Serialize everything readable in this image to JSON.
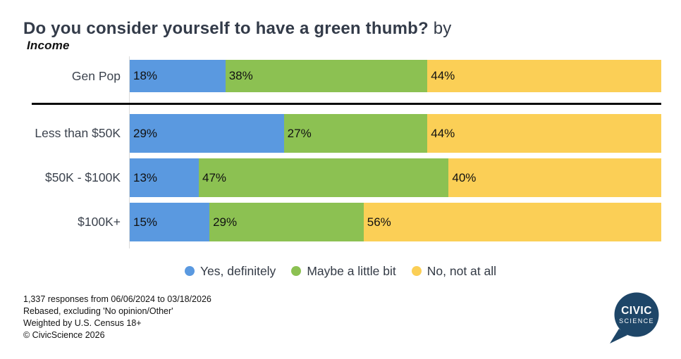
{
  "title": {
    "question": "Do you consider yourself to have a green thumb?",
    "connector": " by ",
    "segment": "Income"
  },
  "chart_data": {
    "type": "bar",
    "orientation": "horizontal-stacked",
    "units": "percent",
    "value_suffix": "%",
    "categories": [
      "Gen Pop",
      "Less than $50K",
      "$50K - $100K",
      "$100K+"
    ],
    "series": [
      {
        "name": "Yes, definitely",
        "color": "#5A99E0",
        "values": [
          18,
          29,
          13,
          15
        ]
      },
      {
        "name": "Maybe a little bit",
        "color": "#8CC152",
        "values": [
          38,
          27,
          47,
          29
        ]
      },
      {
        "name": "No, not at all",
        "color": "#FBCF56",
        "values": [
          44,
          44,
          40,
          56
        ]
      }
    ],
    "xlim": [
      0,
      100
    ],
    "grid": false,
    "legend_position": "bottom",
    "gen_pop_divider": true
  },
  "footer": {
    "lines": [
      "1,337 responses from 06/06/2024 to 03/18/2026",
      "Rebased, excluding 'No opinion/Other'",
      "Weighted by U.S. Census 18+",
      "© CivicScience 2026"
    ]
  },
  "logo": {
    "line1": "CIVIC",
    "line2": "SCIENCE",
    "color": "#1E4668"
  },
  "colors": {
    "title": "#333B49",
    "row_label": "#3C434E",
    "divider": "#0a0a0a",
    "axis": "#dcdcdc"
  }
}
